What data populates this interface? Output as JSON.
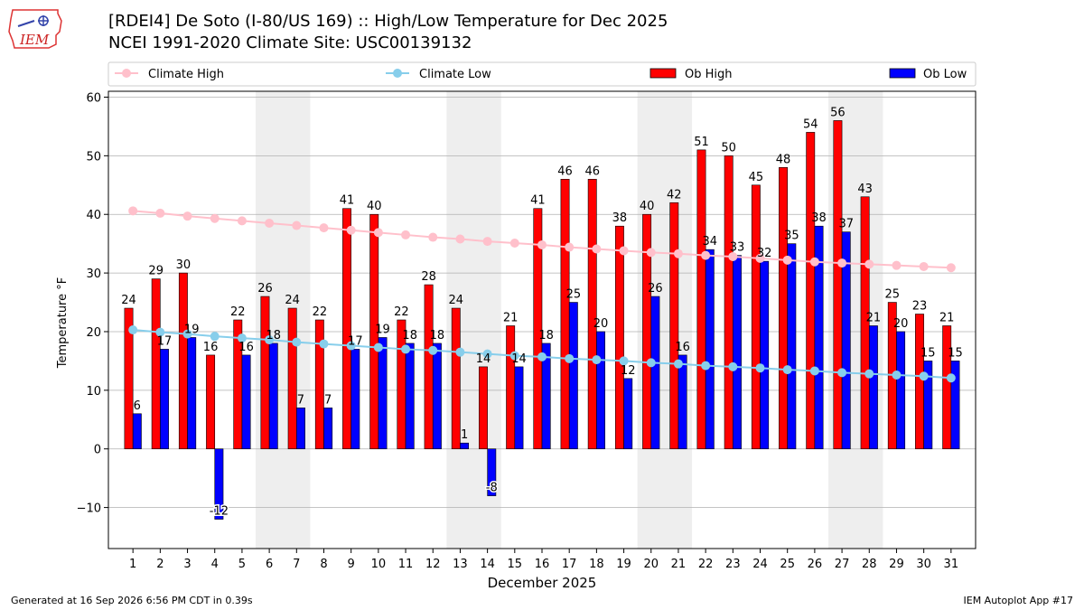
{
  "header": {
    "title_line1": "[RDEI4] De Soto (I-80/US 169) :: High/Low Temperature for Dec 2025",
    "title_line2": "NCEI 1991-2020 Climate Site: USC00139132",
    "logo_text": "IEM"
  },
  "footer": {
    "generated": "Generated at 16 Sep 2026 6:56 PM CDT in 0.39s",
    "app": "IEM Autoplot App #17"
  },
  "colors": {
    "ob_high": "#ff0000",
    "ob_low": "#0000ff",
    "climate_high": "#ffc0cb",
    "climate_low": "#87ceeb",
    "weekend_shade": "#eeeeee"
  },
  "chart_data": {
    "type": "bar",
    "xlabel": "December 2025",
    "ylabel": "Temperature °F",
    "ylim": [
      -17,
      61
    ],
    "yticks": [
      -10,
      0,
      10,
      20,
      30,
      40,
      50,
      60
    ],
    "grid": "horizontal",
    "legend_placement": "top",
    "categories": [
      "1",
      "2",
      "3",
      "4",
      "5",
      "6",
      "7",
      "8",
      "9",
      "10",
      "11",
      "12",
      "13",
      "14",
      "15",
      "16",
      "17",
      "18",
      "19",
      "20",
      "21",
      "22",
      "23",
      "24",
      "25",
      "26",
      "27",
      "28",
      "29",
      "30",
      "31"
    ],
    "weekend_days": [
      [
        6,
        7
      ],
      [
        13,
        14
      ],
      [
        20,
        21
      ],
      [
        27,
        28
      ]
    ],
    "series": [
      {
        "name": "Ob High",
        "kind": "bar",
        "color": "#ff0000",
        "values": [
          24,
          29,
          30,
          16,
          22,
          26,
          24,
          22,
          41,
          40,
          22,
          28,
          24,
          14,
          21,
          41,
          46,
          46,
          38,
          40,
          42,
          51,
          50,
          45,
          48,
          54,
          56,
          43,
          25,
          23,
          21
        ],
        "labels": [
          "24",
          "29",
          "30",
          "16",
          "22",
          "26",
          "24",
          "22",
          "41",
          "40",
          "22",
          "28",
          "24",
          "14",
          "21",
          "41",
          "46",
          "46",
          "38",
          "40",
          "42",
          "51",
          "50",
          "45",
          "48",
          "54",
          "56",
          "43",
          "25",
          "23",
          "21"
        ]
      },
      {
        "name": "Ob Low",
        "kind": "bar",
        "color": "#0000ff",
        "values": [
          6,
          17,
          19,
          -12,
          16,
          18,
          7,
          7,
          17,
          19,
          18,
          18,
          1,
          -8,
          14,
          18,
          25,
          20,
          12,
          26,
          16,
          34,
          33,
          32,
          35,
          38,
          37,
          21,
          20,
          15,
          15
        ],
        "labels": [
          "6",
          "17",
          "19",
          "-12",
          "16",
          "18",
          "7",
          "7",
          "17",
          "19",
          "18",
          "18",
          "1",
          "-8",
          "14",
          "18",
          "25",
          "20",
          "12",
          "26",
          "16",
          "34",
          "33",
          "32",
          "35",
          "38",
          "37",
          "21",
          "20",
          "15",
          "15"
        ]
      },
      {
        "name": "Climate High",
        "kind": "line",
        "color": "#ffc0cb",
        "values": [
          40.6,
          40.2,
          39.7,
          39.3,
          38.9,
          38.5,
          38.1,
          37.7,
          37.3,
          36.9,
          36.5,
          36.1,
          35.8,
          35.4,
          35.1,
          34.8,
          34.4,
          34.1,
          33.8,
          33.5,
          33.3,
          33.0,
          32.8,
          32.5,
          32.2,
          31.9,
          31.7,
          31.5,
          31.3,
          31.1,
          30.9
        ]
      },
      {
        "name": "Climate Low",
        "kind": "line",
        "color": "#87ceeb",
        "values": [
          20.3,
          19.9,
          19.6,
          19.2,
          18.9,
          18.6,
          18.2,
          17.9,
          17.6,
          17.3,
          17.0,
          16.8,
          16.5,
          16.2,
          15.9,
          15.7,
          15.4,
          15.2,
          15.0,
          14.7,
          14.5,
          14.2,
          14.0,
          13.8,
          13.5,
          13.3,
          13.0,
          12.8,
          12.6,
          12.4,
          12.1
        ]
      }
    ]
  }
}
